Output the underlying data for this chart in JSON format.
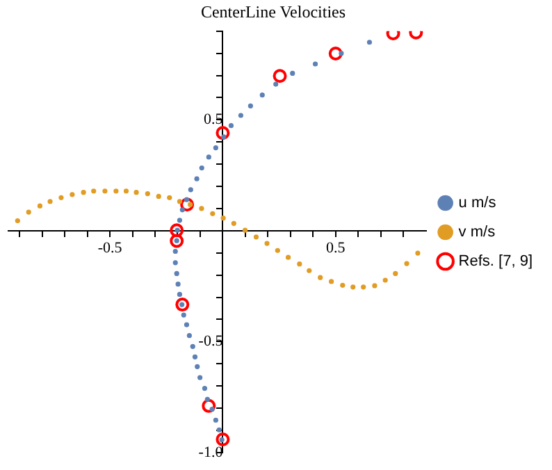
{
  "chart_data": {
    "type": "scatter",
    "title": "CenterLine Velocities",
    "xlim": [
      -0.95,
      0.9
    ],
    "ylim": [
      -1.0,
      0.9
    ],
    "xticks": [
      {
        "value": -0.9,
        "label": null
      },
      {
        "value": -0.8,
        "label": null
      },
      {
        "value": -0.7,
        "label": null
      },
      {
        "value": -0.6,
        "label": null
      },
      {
        "value": -0.5,
        "label": "-0.5"
      },
      {
        "value": -0.4,
        "label": null
      },
      {
        "value": -0.3,
        "label": null
      },
      {
        "value": -0.2,
        "label": null
      },
      {
        "value": -0.1,
        "label": null
      },
      {
        "value": 0.1,
        "label": null
      },
      {
        "value": 0.2,
        "label": null
      },
      {
        "value": 0.3,
        "label": null
      },
      {
        "value": 0.4,
        "label": null
      },
      {
        "value": 0.5,
        "label": "0.5"
      },
      {
        "value": 0.6,
        "label": null
      },
      {
        "value": 0.7,
        "label": null
      },
      {
        "value": 0.8,
        "label": null
      }
    ],
    "yticks": [
      {
        "value": -1.0,
        "label": "-1.0"
      },
      {
        "value": -0.9,
        "label": null
      },
      {
        "value": -0.8,
        "label": null
      },
      {
        "value": -0.7,
        "label": null
      },
      {
        "value": -0.6,
        "label": null
      },
      {
        "value": -0.5,
        "label": "-0.5"
      },
      {
        "value": -0.4,
        "label": null
      },
      {
        "value": -0.3,
        "label": null
      },
      {
        "value": -0.2,
        "label": null
      },
      {
        "value": -0.1,
        "label": null
      },
      {
        "value": 0.1,
        "label": null
      },
      {
        "value": 0.2,
        "label": null
      },
      {
        "value": 0.3,
        "label": null
      },
      {
        "value": 0.4,
        "label": null
      },
      {
        "value": 0.5,
        "label": "0.5"
      },
      {
        "value": 0.6,
        "label": null
      },
      {
        "value": 0.7,
        "label": null
      },
      {
        "value": 0.8,
        "label": null
      },
      {
        "value": 0.9,
        "label": null
      }
    ],
    "grid": false,
    "legend": "right",
    "marker": "circle",
    "series": [
      {
        "name": "u m/s",
        "color": "#5e81b5",
        "x": [
          0.65,
          0.525,
          0.41,
          0.309,
          0.235,
          0.175,
          0.123,
          0.08,
          0.037,
          0.004,
          -0.031,
          -0.062,
          -0.093,
          -0.115,
          -0.142,
          -0.16,
          -0.179,
          -0.191,
          -0.201,
          -0.204,
          -0.21,
          -0.21,
          -0.204,
          -0.198,
          -0.191,
          -0.181,
          -0.173,
          -0.16,
          -0.148,
          -0.133,
          -0.123,
          -0.113,
          -0.101,
          -0.08,
          -0.068,
          -0.047,
          -0.031,
          -0.016,
          -0.004
        ],
        "values": [
          0.85,
          0.8,
          0.752,
          0.71,
          0.661,
          0.612,
          0.563,
          0.52,
          0.474,
          0.423,
          0.374,
          0.332,
          0.283,
          0.234,
          0.185,
          0.14,
          0.094,
          0.047,
          0.002,
          -0.045,
          -0.093,
          -0.144,
          -0.193,
          -0.241,
          -0.287,
          -0.333,
          -0.38,
          -0.424,
          -0.473,
          -0.522,
          -0.569,
          -0.613,
          -0.662,
          -0.711,
          -0.76,
          -0.805,
          -0.854,
          -0.898,
          -0.943
        ]
      },
      {
        "name": "v m/s",
        "color": "#e19c24",
        "x": [
          -0.909,
          -0.86,
          -0.81,
          -0.765,
          -0.716,
          -0.667,
          -0.617,
          -0.572,
          -0.522,
          -0.473,
          -0.428,
          -0.383,
          -0.333,
          -0.284,
          -0.236,
          -0.191,
          -0.144,
          -0.094,
          -0.045,
          0.002,
          0.049,
          0.099,
          0.148,
          0.196,
          0.243,
          0.29,
          0.34,
          0.383,
          0.432,
          0.481,
          0.531,
          0.577,
          0.623,
          0.673,
          0.72,
          0.765,
          0.815,
          0.864
        ],
        "values": [
          0.045,
          0.084,
          0.112,
          0.132,
          0.149,
          0.163,
          0.173,
          0.179,
          0.179,
          0.179,
          0.179,
          0.173,
          0.167,
          0.155,
          0.149,
          0.132,
          0.118,
          0.1,
          0.077,
          0.057,
          0.033,
          0.002,
          -0.028,
          -0.057,
          -0.089,
          -0.12,
          -0.15,
          -0.18,
          -0.211,
          -0.229,
          -0.246,
          -0.254,
          -0.254,
          -0.248,
          -0.223,
          -0.193,
          -0.148,
          -0.101
        ]
      },
      {
        "name": "Refs. [7, 9]",
        "color": "#ff0000",
        "x": [
          0.856,
          0.755,
          0.5,
          0.253,
          0,
          -0.158,
          -0.204,
          -0.204,
          -0.179,
          -0.062,
          0
        ],
        "values": [
          0.894,
          0.89,
          0.799,
          0.698,
          0.441,
          0.118,
          0.002,
          -0.046,
          -0.333,
          -0.79,
          -0.941
        ]
      }
    ]
  }
}
